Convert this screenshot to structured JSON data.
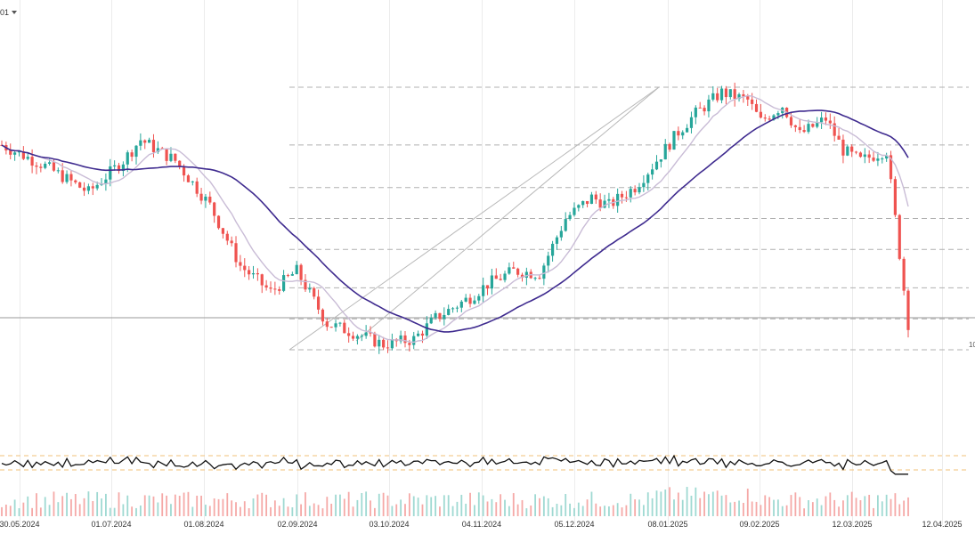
{
  "toolbar": {
    "symbol_text": "01"
  },
  "chart_data": {
    "type": "candlestick",
    "x_labels": [
      "30.05.2024",
      "01.07.2024",
      "01.08.2024",
      "02.09.2024",
      "03.10.2024",
      "04.11.2024",
      "05.12.2024",
      "08.01.2025",
      "09.02.2025",
      "12.03.2025",
      "12.04.2025"
    ],
    "price_levels": [
      1.0,
      0.78,
      0.618,
      0.5,
      0.382,
      0.236,
      0.118,
      0.0
    ],
    "price_axis_label_visible": "10",
    "oscillator": {
      "upper_level": 70,
      "lower_level": 30
    },
    "colors": {
      "up": "#26a69a",
      "down": "#ef5350",
      "ma_fast": "#c9bcd6",
      "ma_slow": "#3f2b8f",
      "level_line": "#b0b0b0",
      "osc_line": "#111111",
      "osc_band": "#f2c27a"
    },
    "grid": "vertical"
  }
}
